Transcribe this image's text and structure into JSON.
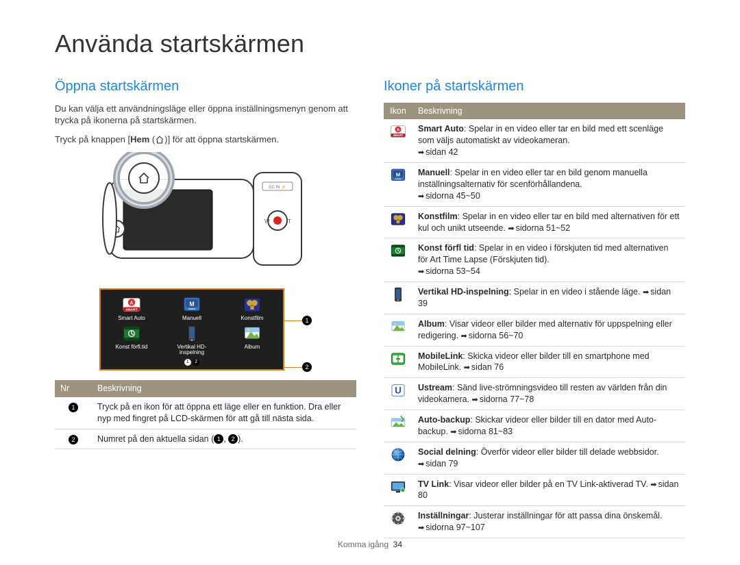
{
  "page_title": "Använda startskärmen",
  "footer": {
    "section": "Komma igång",
    "page": "34"
  },
  "left": {
    "heading": "Öppna startskärmen",
    "intro": "Du kan välja ett användningsläge eller öppna inställningsmenyn genom att trycka på ikonerna på startskärmen.",
    "instruction_pre": "Tryck på knappen [",
    "instruction_key": "Hem",
    "instruction_post": "] för att öppna startskärmen.",
    "screen_items": [
      {
        "label": "Smart Auto",
        "icon": "smart-auto"
      },
      {
        "label": "Manuell",
        "icon": "manual"
      },
      {
        "label": "Konstfilm",
        "icon": "artfilm"
      },
      {
        "label": "Konst förfl.tid",
        "icon": "timelapse"
      },
      {
        "label": "Vertikal HD-inspelning",
        "icon": "vertical"
      },
      {
        "label": "Album",
        "icon": "album"
      }
    ],
    "table_headers": {
      "nr": "Nr",
      "desc": "Beskrivning"
    },
    "rows": [
      {
        "num": "1",
        "text": "Tryck på en ikon för att öppna ett läge eller en funktion. Dra eller nyp med fingret på LCD-skärmen för att gå till nästa sida."
      },
      {
        "num": "2",
        "text_pre": "Numret på den aktuella sidan (",
        "text_post": ")."
      }
    ]
  },
  "right": {
    "heading": "Ikoner på startskärmen",
    "table_headers": {
      "icon": "Ikon",
      "desc": "Beskrivning"
    },
    "rows": [
      {
        "icon": "smart-auto",
        "bold": "Smart Auto",
        "text": ": Spelar in en video eller tar en bild med ett scenläge som väljs automatiskt av videokameran.",
        "ref": "sidan 42"
      },
      {
        "icon": "manual",
        "bold": "Manuell",
        "text": ": Spelar in en video eller tar en bild genom manuella inställningsalternativ för scenförhållandena.",
        "ref": "sidorna 45~50"
      },
      {
        "icon": "artfilm",
        "bold": "Konstfilm",
        "text": ": Spelar in en video eller tar en bild med alternativen för ett kul och unikt utseende. ",
        "ref": "sidorna 51~52",
        "inline_ref": true
      },
      {
        "icon": "timelapse",
        "bold": "Konst förfl tid",
        "text": ": Spelar in en video i förskjuten tid med alternativen för Art Time Lapse (Förskjuten tid).",
        "ref": "sidorna 53~54"
      },
      {
        "icon": "vertical",
        "bold": "Vertikal HD-inspelning",
        "text": ": Spelar in en video i stående läge. ",
        "ref": "sidan 39",
        "inline_ref": true
      },
      {
        "icon": "album",
        "bold": "Album",
        "text": ": Visar videor eller bilder med alternativ för uppspelning eller redigering. ",
        "ref": "sidorna 56~70",
        "inline_ref": true
      },
      {
        "icon": "mobilelink",
        "bold": "MobileLink",
        "text": ": Skicka videor eller bilder till en smartphone med MobileLink. ",
        "ref": "sidan 76",
        "inline_ref": true
      },
      {
        "icon": "ustream",
        "bold": "Ustream",
        "text": ": Sänd live-strömningsvideo till resten av världen från din videokamera. ",
        "ref": "sidorna 77~78",
        "inline_ref": true
      },
      {
        "icon": "autobackup",
        "bold": "Auto-backup",
        "text": ": Skickar videor eller bilder till en dator med Auto-backup. ",
        "ref": "sidorna 81~83",
        "inline_ref": true
      },
      {
        "icon": "social",
        "bold": "Social delning",
        "text": ": Överför videor eller bilder till delade webbsidor. ",
        "ref": "sidan 79",
        "inline_ref": true
      },
      {
        "icon": "tvlink",
        "bold": "TV Link",
        "text": ": Visar videor eller bilder på en TV Link-aktiverad TV. ",
        "ref": "sidan 80",
        "inline_ref": true
      },
      {
        "icon": "settings",
        "bold": "Inställningar",
        "text": ": Justerar inställningar för att passa dina önskemål. ",
        "ref": "sidorna 97~107",
        "inline_ref": true
      }
    ]
  },
  "icons": {
    "smart-auto": {
      "bg": "#ffffff",
      "stroke": "#888",
      "inner": "#e12f2f",
      "letter": "A",
      "band": "#c02020",
      "band_text": "SMART"
    },
    "manual": {
      "bg": "#3a6fbf",
      "stroke": "#1b3f78",
      "inner": "#ffffff",
      "letter": "M"
    },
    "artfilm": {
      "bg": "#2b2f8c",
      "stroke": "#14184f",
      "inner": "#c9a43b",
      "letter": ""
    },
    "timelapse": {
      "bg": "#1d7a2e",
      "stroke": "#0e4419",
      "inner": "#ffffff",
      "letter": ""
    },
    "vertical": {
      "bg": "#333333",
      "stroke": "#111111",
      "inner": "#ffffff",
      "letter": ""
    },
    "album": {
      "bg": "#ffffff",
      "stroke": "#999999",
      "inner": "#6fb545",
      "letter": ""
    },
    "mobilelink": {
      "bg": "#2fae3a",
      "stroke": "#14701d",
      "inner": "#ffffff",
      "letter": ""
    },
    "ustream": {
      "bg": "#ffffff",
      "stroke": "#2b52c4",
      "inner": "#2b52c4",
      "letter": "U"
    },
    "autobackup": {
      "bg": "#ffffff",
      "stroke": "#999999",
      "inner": "#6fb545",
      "letter": ""
    },
    "social": {
      "bg": "radial",
      "stroke": "#0a3f7a",
      "inner": "#ffffff",
      "letter": ""
    },
    "tvlink": {
      "bg": "#34495e",
      "stroke": "#1b2a38",
      "inner": "#5fa9e0",
      "letter": ""
    },
    "settings": {
      "bg": "#444444",
      "stroke": "#1a1a1a",
      "inner": "#bbbbbb",
      "letter": ""
    }
  }
}
